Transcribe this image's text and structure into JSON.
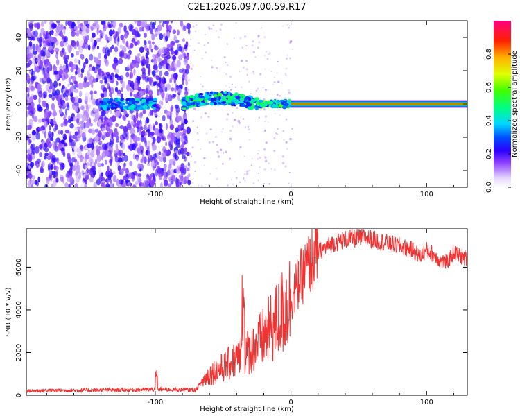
{
  "title": "C2E1.2026.097.00.59.R17",
  "colorbar": {
    "label": "Normalized spectral amplitude",
    "ticks": [
      "0.0",
      "0.2",
      "0.4",
      "0.6",
      "0.8"
    ],
    "tick_values": [
      0.0,
      0.2,
      0.4,
      0.6,
      0.8
    ]
  },
  "chart_data": [
    {
      "type": "heatmap",
      "title": "C2E1.2026.097.00.59.R17",
      "xlabel": "Height of straight line (km)",
      "ylabel": "Frequency (Hz)",
      "xlim": [
        -195,
        130
      ],
      "ylim": [
        -50,
        50
      ],
      "xticks": [
        -100,
        0,
        100
      ],
      "xtick_labels": [
        "-100",
        "0",
        "100"
      ],
      "yticks": [
        -40,
        -20,
        0,
        20,
        40
      ],
      "ytick_labels": [
        "-40",
        "-20",
        "0",
        "20",
        "40"
      ],
      "colorscale_range": [
        0,
        1
      ],
      "description_points": [
        {
          "x_km": -125,
          "freq_hz": 0,
          "amplitude": 0.35
        },
        {
          "x_km": -110,
          "freq_hz": 0,
          "amplitude": 0.4
        },
        {
          "x_km": -70,
          "freq_hz": -1,
          "amplitude": 0.35
        },
        {
          "x_km": -55,
          "freq_hz": 2,
          "amplitude": 0.45
        },
        {
          "x_km": -40,
          "freq_hz": 3,
          "amplitude": 0.55
        },
        {
          "x_km": -20,
          "freq_hz": 0,
          "amplitude": 0.6
        },
        {
          "x_km": 0,
          "freq_hz": 0,
          "amplitude": 0.9
        },
        {
          "x_km": 130,
          "freq_hz": 0,
          "amplitude": 0.95
        }
      ]
    },
    {
      "type": "line",
      "xlabel": "Height of straight line (km)",
      "ylabel": "SNR (10 * v/v)",
      "xlim": [
        -195,
        130
      ],
      "ylim": [
        0,
        7800
      ],
      "xticks": [
        -100,
        0,
        100
      ],
      "xtick_labels": [
        "-100",
        "0",
        "100"
      ],
      "yticks": [
        0,
        2000,
        4000,
        6000
      ],
      "ytick_labels": [
        "0",
        "2000",
        "4000",
        "6000"
      ],
      "series": [
        {
          "name": "SNR",
          "color": "#ee3333",
          "x": [
            -195,
            -180,
            -160,
            -140,
            -120,
            -100,
            -90,
            -80,
            -70,
            -66,
            -60,
            -50,
            -40,
            -30,
            -25,
            -20,
            -15,
            -10,
            -5,
            0,
            5,
            10,
            15,
            20,
            30,
            40,
            50,
            55,
            60,
            70,
            80,
            90,
            95,
            100,
            105,
            110,
            115,
            120,
            125,
            130
          ],
          "y": [
            200,
            220,
            230,
            240,
            250,
            270,
            270,
            250,
            250,
            600,
            1000,
            1300,
            1700,
            2100,
            2400,
            2700,
            3100,
            3500,
            4000,
            4500,
            5200,
            5800,
            6300,
            6700,
            7100,
            7300,
            7350,
            7400,
            7300,
            7150,
            7000,
            6800,
            6500,
            6800,
            6600,
            6300,
            6200,
            6700,
            6500,
            6400
          ]
        }
      ]
    }
  ]
}
